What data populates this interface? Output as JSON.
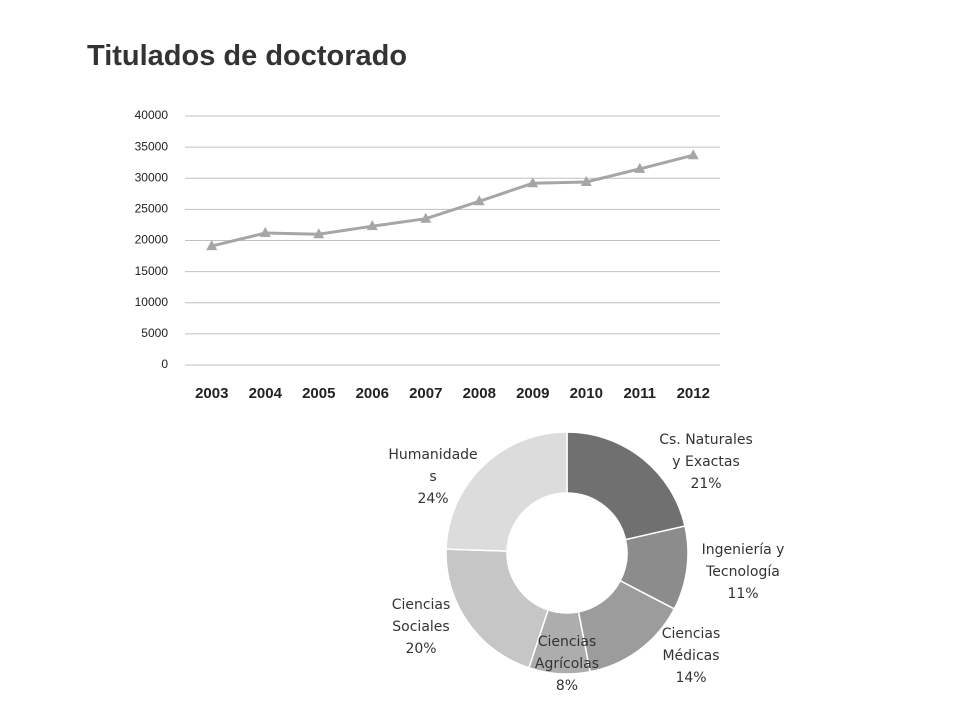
{
  "title": "Titulados de doctorado",
  "chart_data": [
    {
      "type": "line",
      "categories": [
        "2003",
        "2004",
        "2005",
        "2006",
        "2007",
        "2008",
        "2009",
        "2010",
        "2011",
        "2012"
      ],
      "values": [
        19100,
        21200,
        21000,
        22300,
        23500,
        26300,
        29200,
        29400,
        31500,
        33700
      ],
      "color": "#a6a6a6",
      "marker": "triangle",
      "ylim": [
        0,
        40000
      ],
      "yticks": [
        0,
        5000,
        10000,
        15000,
        20000,
        25000,
        30000,
        35000,
        40000
      ],
      "grid": true
    },
    {
      "type": "donut",
      "categories": [
        "Cs. Naturales y Exactas",
        "Ingeniería y Tecnología",
        "Ciencias Médicas",
        "Ciencias Agrícolas",
        "Ciencias Sociales",
        "Humanidades"
      ],
      "values": [
        21,
        11,
        14,
        8,
        20,
        24
      ],
      "value_labels": [
        "21%",
        "11%",
        "14%",
        "8%",
        "20%",
        "24%"
      ],
      "colors": [
        "#707070",
        "#8c8c8c",
        "#9c9c9c",
        "#adadad",
        "#c6c6c6",
        "#dcdcdc"
      ]
    }
  ]
}
